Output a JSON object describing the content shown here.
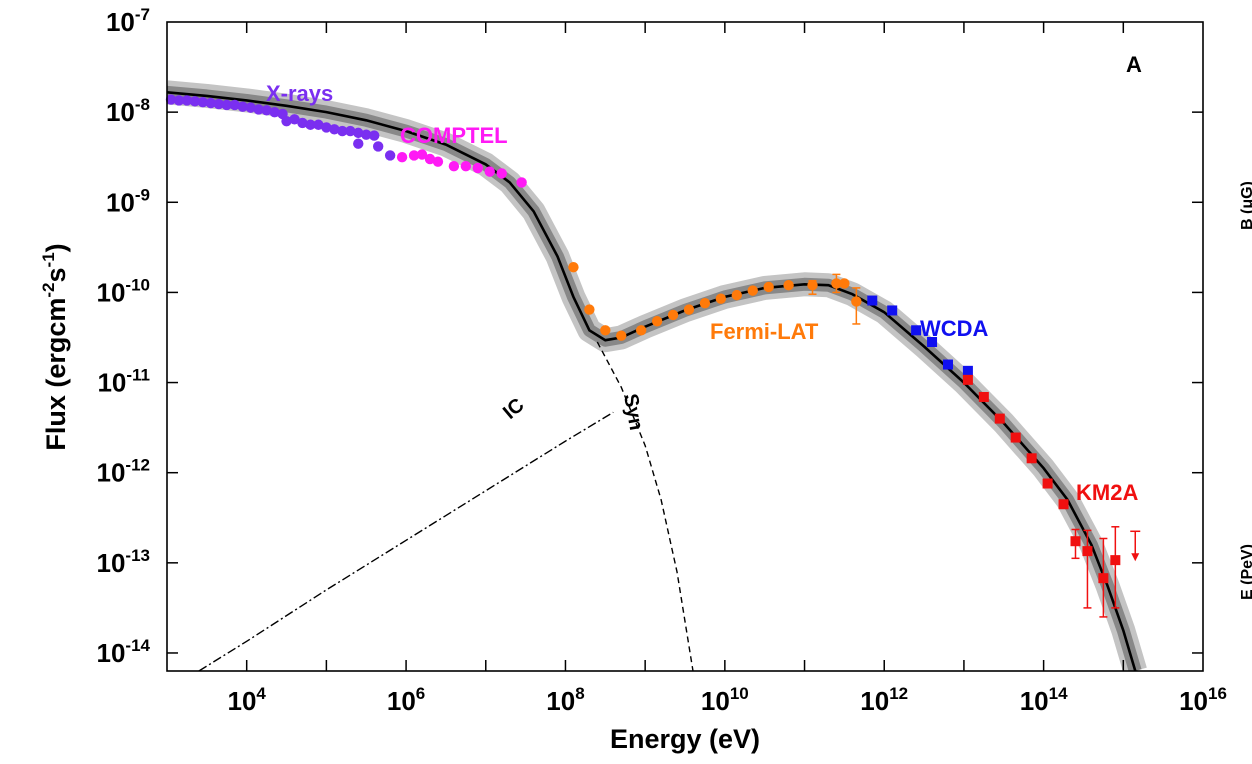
{
  "chart_data": {
    "type": "scatter",
    "panel_label": "A",
    "xlabel": "Energy (eV)",
    "ylabel": "Flux (ergcm-2s-1)",
    "ylabel_parts": {
      "base": "Flux (ergcm",
      "exp1": "-2",
      "mid": "s",
      "exp2": "-1",
      "end": ")"
    },
    "xscale": "log",
    "yscale": "log",
    "xlim_log10": [
      3,
      16
    ],
    "ylim_log10": [
      -14.2,
      -7
    ],
    "x_ticks": [
      {
        "base": "10",
        "exp": "4",
        "log": 4
      },
      {
        "base": "10",
        "exp": "6",
        "log": 6
      },
      {
        "base": "10",
        "exp": "8",
        "log": 8
      },
      {
        "base": "10",
        "exp": "10",
        "log": 10
      },
      {
        "base": "10",
        "exp": "12",
        "log": 12
      },
      {
        "base": "10",
        "exp": "14",
        "log": 14
      },
      {
        "base": "10",
        "exp": "16",
        "log": 16
      }
    ],
    "y_ticks": [
      {
        "base": "10",
        "exp": "-7",
        "log": -7
      },
      {
        "base": "10",
        "exp": "-8",
        "log": -8
      },
      {
        "base": "10",
        "exp": "-9",
        "log": -9
      },
      {
        "base": "10",
        "exp": "-10",
        "log": -10
      },
      {
        "base": "10",
        "exp": "-11",
        "log": -11
      },
      {
        "base": "10",
        "exp": "-12",
        "log": -12
      },
      {
        "base": "10",
        "exp": "-13",
        "log": -13
      },
      {
        "base": "10",
        "exp": "-14",
        "log": -14
      }
    ],
    "model": {
      "total_log10": [
        [
          3,
          -7.78
        ],
        [
          3.5,
          -7.82
        ],
        [
          4,
          -7.87
        ],
        [
          4.5,
          -7.93
        ],
        [
          5,
          -8.0
        ],
        [
          5.5,
          -8.09
        ],
        [
          6,
          -8.21
        ],
        [
          6.5,
          -8.36
        ],
        [
          7,
          -8.58
        ],
        [
          7.3,
          -8.78
        ],
        [
          7.6,
          -9.1
        ],
        [
          7.9,
          -9.6
        ],
        [
          8.1,
          -10.05
        ],
        [
          8.3,
          -10.42
        ],
        [
          8.5,
          -10.53
        ],
        [
          8.7,
          -10.5
        ],
        [
          9,
          -10.38
        ],
        [
          9.5,
          -10.2
        ],
        [
          10,
          -10.05
        ],
        [
          10.5,
          -9.95
        ],
        [
          11,
          -9.91
        ],
        [
          11.3,
          -9.92
        ],
        [
          11.6,
          -10.02
        ],
        [
          12,
          -10.22
        ],
        [
          12.5,
          -10.6
        ],
        [
          13,
          -11.0
        ],
        [
          13.5,
          -11.45
        ],
        [
          14,
          -11.95
        ],
        [
          14.3,
          -12.3
        ],
        [
          14.6,
          -12.8
        ],
        [
          14.8,
          -13.25
        ],
        [
          15,
          -13.75
        ],
        [
          15.15,
          -14.2
        ]
      ],
      "ic_log10": [
        [
          3.4,
          -14.2
        ],
        [
          4,
          -13.87
        ],
        [
          5,
          -13.3
        ],
        [
          6,
          -12.75
        ],
        [
          7,
          -12.2
        ],
        [
          8,
          -11.65
        ],
        [
          8.6,
          -11.33
        ]
      ],
      "syn_log10": [
        [
          8.4,
          -10.55
        ],
        [
          8.7,
          -11.05
        ],
        [
          9,
          -11.7
        ],
        [
          9.2,
          -12.3
        ],
        [
          9.4,
          -13.1
        ],
        [
          9.6,
          -14.2
        ]
      ],
      "ic_label": "IC",
      "syn_label": "Syn"
    },
    "series": [
      {
        "name": "X-rays",
        "color": "#7a2ff0",
        "marker": "circle",
        "points": [
          [
            3.05,
            -7.86
          ],
          [
            3.15,
            -7.87
          ],
          [
            3.25,
            -7.87
          ],
          [
            3.35,
            -7.88
          ],
          [
            3.45,
            -7.89
          ],
          [
            3.55,
            -7.9
          ],
          [
            3.65,
            -7.91
          ],
          [
            3.75,
            -7.92
          ],
          [
            3.85,
            -7.92
          ],
          [
            3.95,
            -7.94
          ],
          [
            4.05,
            -7.95
          ],
          [
            4.15,
            -7.97
          ],
          [
            4.25,
            -7.98
          ],
          [
            4.35,
            -8.0
          ],
          [
            4.45,
            -8.02
          ],
          [
            4.5,
            -8.1
          ],
          [
            4.6,
            -8.08
          ],
          [
            4.7,
            -8.12
          ],
          [
            4.8,
            -8.14
          ],
          [
            4.9,
            -8.14
          ],
          [
            5.0,
            -8.17
          ],
          [
            5.1,
            -8.19
          ],
          [
            5.2,
            -8.21
          ],
          [
            5.3,
            -8.21
          ],
          [
            5.4,
            -8.23
          ],
          [
            5.5,
            -8.25
          ],
          [
            5.6,
            -8.26
          ],
          [
            5.4,
            -8.35
          ],
          [
            5.65,
            -8.38
          ],
          [
            5.8,
            -8.48
          ]
        ]
      },
      {
        "name": "COMPTEL",
        "color": "#ff1af5",
        "marker": "circle",
        "points": [
          [
            5.95,
            -8.5
          ],
          [
            6.1,
            -8.48
          ],
          [
            6.2,
            -8.47
          ],
          [
            6.3,
            -8.52
          ],
          [
            6.4,
            -8.55
          ],
          [
            6.6,
            -8.6
          ],
          [
            6.75,
            -8.6
          ],
          [
            6.9,
            -8.62
          ],
          [
            7.05,
            -8.66
          ],
          [
            7.2,
            -8.68
          ],
          [
            7.45,
            -8.78
          ]
        ]
      },
      {
        "name": "Fermi-LAT",
        "color": "#ff7a0a",
        "marker": "circle",
        "points": [
          [
            8.1,
            -9.72
          ],
          [
            8.3,
            -10.19
          ],
          [
            8.5,
            -10.42
          ],
          [
            8.7,
            -10.48
          ],
          [
            8.95,
            -10.42
          ],
          [
            9.15,
            -10.32
          ],
          [
            9.35,
            -10.25
          ],
          [
            9.55,
            -10.19
          ],
          [
            9.75,
            -10.12
          ],
          [
            9.95,
            -10.07
          ],
          [
            10.15,
            -10.03
          ],
          [
            10.35,
            -9.98
          ],
          [
            10.55,
            -9.94
          ],
          [
            10.8,
            -9.92
          ],
          [
            11.1,
            -9.92
          ],
          [
            11.4,
            -9.9
          ],
          [
            11.5,
            -9.9
          ],
          [
            11.65,
            -10.1
          ]
        ],
        "error_bars": [
          {
            "x": 11.1,
            "lo": -10.02,
            "hi": -9.87
          },
          {
            "x": 11.4,
            "lo": -10.0,
            "hi": -9.8
          },
          {
            "x": 11.65,
            "lo": -10.35,
            "hi": -9.95
          }
        ]
      },
      {
        "name": "WCDA",
        "color": "#1010f0",
        "marker": "square",
        "points": [
          [
            11.85,
            -10.09
          ],
          [
            12.1,
            -10.2
          ],
          [
            12.4,
            -10.42
          ],
          [
            12.6,
            -10.55
          ],
          [
            12.8,
            -10.8
          ],
          [
            13.05,
            -10.87
          ]
        ]
      },
      {
        "name": "KM2A",
        "color": "#f01010",
        "marker": "square",
        "points": [
          [
            13.05,
            -10.97
          ],
          [
            13.25,
            -11.16
          ],
          [
            13.45,
            -11.4
          ],
          [
            13.65,
            -11.61
          ],
          [
            13.85,
            -11.84
          ],
          [
            14.05,
            -12.12
          ],
          [
            14.25,
            -12.35
          ],
          [
            14.4,
            -12.76
          ],
          [
            14.55,
            -12.87
          ],
          [
            14.75,
            -13.17
          ],
          [
            14.9,
            -12.97
          ]
        ],
        "error_bars": [
          {
            "x": 14.4,
            "lo": -12.95,
            "hi": -12.63
          },
          {
            "x": 14.55,
            "lo": -13.5,
            "hi": -12.64
          },
          {
            "x": 14.75,
            "lo": -13.6,
            "hi": -12.73
          },
          {
            "x": 14.9,
            "lo": -13.5,
            "hi": -12.6
          }
        ],
        "upper_limit": {
          "x": 15.15,
          "y": -12.65
        }
      }
    ],
    "labels": [
      {
        "text": "X-rays",
        "color": "#7a2ff0"
      },
      {
        "text": "COMPTEL",
        "color": "#ff1af5"
      },
      {
        "text": "Fermi-LAT",
        "color": "#ff7a0a"
      },
      {
        "text": "WCDA",
        "color": "#1010f0"
      },
      {
        "text": "KM2A",
        "color": "#f01010"
      }
    ],
    "side_labels": [
      "B (μG)",
      "E (PeV)"
    ]
  }
}
